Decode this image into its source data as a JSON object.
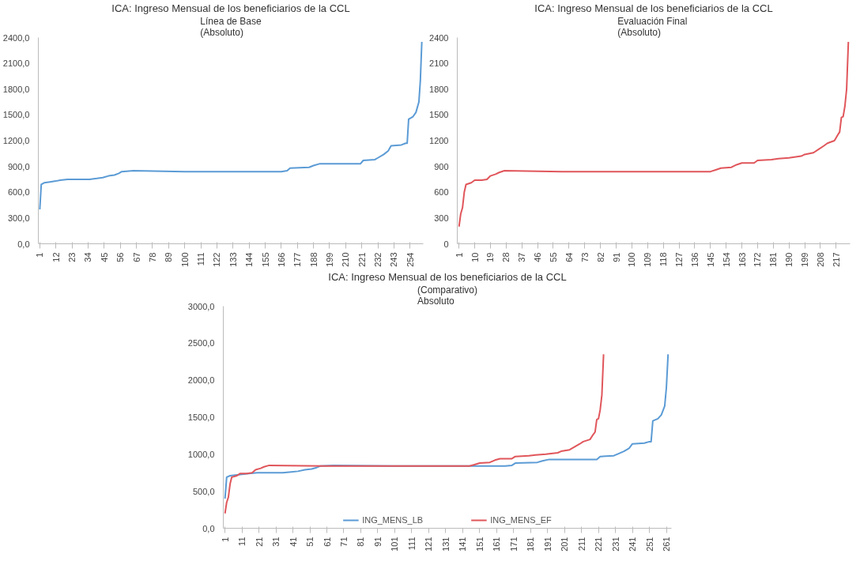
{
  "chart_data": [
    {
      "type": "line",
      "title": "ICA: Ingreso Mensual de los beneficiarios de la CCL",
      "subtitle": "Línea de Base\n(Absoluto)",
      "series": [
        {
          "color": "#5b9bd5",
          "x": [
            1,
            2,
            4,
            8,
            12,
            15,
            20,
            35,
            40,
            44,
            48,
            52,
            55,
            57,
            65,
            100,
            140,
            166,
            170,
            172,
            185,
            188,
            192,
            220,
            222,
            230,
            232,
            236,
            239,
            241,
            248,
            251,
            252,
            253,
            256,
            258,
            260,
            261,
            262
          ],
          "values": [
            400,
            690,
            710,
            720,
            730,
            740,
            750,
            750,
            760,
            770,
            790,
            800,
            820,
            840,
            850,
            840,
            840,
            840,
            850,
            880,
            890,
            910,
            930,
            930,
            970,
            980,
            1000,
            1040,
            1080,
            1140,
            1150,
            1170,
            1170,
            1450,
            1480,
            1530,
            1650,
            1900,
            2350
          ]
        }
      ],
      "xlim": [
        0,
        263
      ],
      "xticks": [
        1,
        12,
        23,
        34,
        45,
        56,
        67,
        78,
        89,
        100,
        111,
        122,
        133,
        144,
        155,
        166,
        177,
        188,
        199,
        210,
        221,
        232,
        243,
        254
      ],
      "ylim": [
        0,
        2400
      ],
      "yticks": [
        {
          "value": 0,
          "label": "0,0"
        },
        {
          "value": 300,
          "label": "300,0"
        },
        {
          "value": 600,
          "label": "600,0"
        },
        {
          "value": 900,
          "label": "900,0"
        },
        {
          "value": 1200,
          "label": "1200,0"
        },
        {
          "value": 1500,
          "label": "1500,0"
        },
        {
          "value": 1800,
          "label": "1800,0"
        },
        {
          "value": 2100,
          "label": "2100,0"
        },
        {
          "value": 2400,
          "label": "2400,0"
        }
      ],
      "grid": false,
      "legend": false
    },
    {
      "type": "line",
      "title": "ICA: Ingreso Mensual de los beneficiarios de la CCL",
      "subtitle": "Evaluación  Final\n(Absoluto)",
      "series": [
        {
          "color": "#e0565b",
          "x": [
            1,
            2,
            3,
            4,
            5,
            8,
            10,
            14,
            17,
            19,
            22,
            24,
            27,
            60,
            100,
            145,
            148,
            151,
            157,
            160,
            163,
            170,
            172,
            180,
            184,
            190,
            197,
            199,
            204,
            207,
            210,
            212,
            216,
            218,
            219,
            220,
            221,
            222,
            223,
            224
          ],
          "values": [
            200,
            350,
            420,
            600,
            690,
            710,
            740,
            740,
            750,
            790,
            810,
            830,
            850,
            840,
            840,
            840,
            860,
            880,
            890,
            920,
            940,
            940,
            970,
            980,
            990,
            1000,
            1020,
            1040,
            1060,
            1100,
            1140,
            1170,
            1200,
            1270,
            1300,
            1470,
            1480,
            1600,
            1800,
            2350
          ]
        }
      ],
      "xlim": [
        0,
        225
      ],
      "xticks": [
        1,
        10,
        19,
        28,
        37,
        46,
        55,
        64,
        73,
        82,
        91,
        100,
        109,
        118,
        127,
        136,
        145,
        154,
        163,
        172,
        181,
        190,
        199,
        208,
        217
      ],
      "ylim": [
        0,
        2400
      ],
      "yticks": [
        0,
        300,
        600,
        900,
        1200,
        1500,
        1800,
        2100,
        2400
      ],
      "grid": false,
      "legend": false
    },
    {
      "type": "line",
      "title": "ICA: Ingreso Mensual de los beneficiarios de la CCL",
      "subtitle": "(Comparativo)\nAbsoluto",
      "series": [
        {
          "name": "ING_MENS_LB",
          "color": "#5b9bd5",
          "x": [
            1,
            2,
            4,
            8,
            12,
            15,
            20,
            35,
            40,
            44,
            48,
            52,
            55,
            57,
            65,
            100,
            140,
            166,
            170,
            172,
            185,
            188,
            192,
            220,
            222,
            230,
            232,
            236,
            239,
            241,
            248,
            251,
            252,
            253,
            256,
            258,
            260,
            261,
            262
          ],
          "values": [
            400,
            690,
            710,
            720,
            730,
            740,
            750,
            750,
            760,
            770,
            790,
            800,
            820,
            840,
            850,
            840,
            840,
            840,
            850,
            880,
            890,
            910,
            930,
            930,
            970,
            980,
            1000,
            1040,
            1080,
            1140,
            1150,
            1170,
            1170,
            1450,
            1480,
            1530,
            1650,
            1900,
            2350
          ]
        },
        {
          "name": "ING_MENS_EF",
          "color": "#e0565b",
          "x": [
            1,
            2,
            3,
            4,
            5,
            8,
            10,
            14,
            17,
            19,
            22,
            24,
            27,
            60,
            100,
            145,
            148,
            151,
            157,
            160,
            163,
            170,
            172,
            180,
            184,
            190,
            197,
            199,
            204,
            207,
            210,
            212,
            216,
            218,
            219,
            220,
            221,
            222,
            223,
            224
          ],
          "values": [
            200,
            350,
            420,
            600,
            690,
            710,
            740,
            740,
            750,
            790,
            810,
            830,
            850,
            840,
            840,
            840,
            860,
            880,
            890,
            920,
            940,
            940,
            970,
            980,
            990,
            1000,
            1020,
            1040,
            1060,
            1100,
            1140,
            1170,
            1200,
            1270,
            1300,
            1470,
            1480,
            1600,
            1800,
            2350
          ]
        }
      ],
      "xlim": [
        0,
        264
      ],
      "xticks": [
        1,
        11,
        21,
        31,
        41,
        51,
        61,
        71,
        81,
        91,
        101,
        111,
        121,
        131,
        141,
        151,
        161,
        171,
        181,
        191,
        201,
        211,
        221,
        231,
        241,
        251,
        261
      ],
      "ylim": [
        0,
        3000
      ],
      "yticks": [
        {
          "value": 0,
          "label": "0,0"
        },
        {
          "value": 500,
          "label": "500,0"
        },
        {
          "value": 1000,
          "label": "1000,0"
        },
        {
          "value": 1500,
          "label": "1500,0"
        },
        {
          "value": 2000,
          "label": "2000,0"
        },
        {
          "value": 2500,
          "label": "2500,0"
        },
        {
          "value": 3000,
          "label": "3000,0"
        }
      ],
      "grid": false,
      "legend": "bottom"
    }
  ]
}
